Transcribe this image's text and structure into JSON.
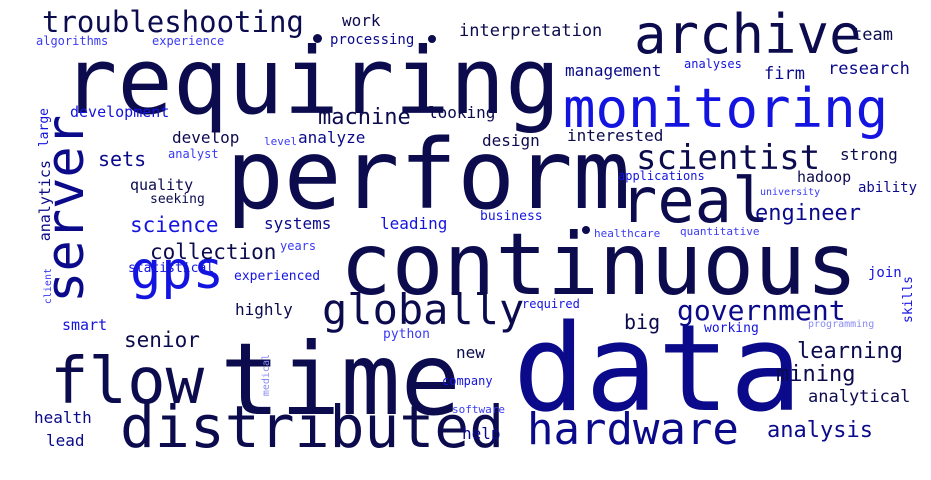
{
  "colors": {
    "background": "#ffffff",
    "navy_dark": "#0b0b4e",
    "navy": "#0a0a8a",
    "blue": "#1414e0",
    "blue_light": "#3a3af5",
    "blue_pale": "#8a8af5"
  },
  "words": [
    {
      "text": "requiring",
      "color": "#0b0b4e"
    },
    {
      "text": "perform",
      "color": "#0b0b4e"
    },
    {
      "text": "continuous",
      "color": "#0b0b4e"
    },
    {
      "text": "data",
      "color": "#0a0a8a"
    },
    {
      "text": "time",
      "color": "#0b0b4e"
    },
    {
      "text": "monitoring",
      "color": "#1414e0"
    },
    {
      "text": "archive",
      "color": "#0b0b4e"
    },
    {
      "text": "real",
      "color": "#0b0b4e"
    },
    {
      "text": "server",
      "color": "#0a0a8a"
    },
    {
      "text": "flow",
      "color": "#0b0b4e"
    },
    {
      "text": "distributed",
      "color": "#0b0b4e"
    },
    {
      "text": "hardware",
      "color": "#0a0a8a"
    },
    {
      "text": "gps",
      "color": "#1414e0"
    },
    {
      "text": "globally",
      "color": "#0b0b4e"
    },
    {
      "text": "troubleshooting",
      "color": "#0b0b4e"
    },
    {
      "text": "scientist",
      "color": "#0b0b4e"
    },
    {
      "text": "government",
      "color": "#0a0a8a"
    },
    {
      "text": "collection",
      "color": "#0b0b4e"
    },
    {
      "text": "science",
      "color": "#1414e0"
    },
    {
      "text": "engineer",
      "color": "#0a0a8a"
    },
    {
      "text": "machine",
      "color": "#0b0b4e"
    },
    {
      "text": "learning",
      "color": "#0b0b4e"
    },
    {
      "text": "mining",
      "color": "#0b0b4e"
    },
    {
      "text": "analysis",
      "color": "#0a0a8a"
    },
    {
      "text": "analytical",
      "color": "#0b0b4e"
    },
    {
      "text": "interpretation",
      "color": "#0b0b4e"
    },
    {
      "text": "management",
      "color": "#0a0a8a"
    },
    {
      "text": "research",
      "color": "#0a0a8a"
    },
    {
      "text": "firm",
      "color": "#0a0a8a"
    },
    {
      "text": "team",
      "color": "#0b0b4e"
    },
    {
      "text": "work",
      "color": "#0b0b4e"
    },
    {
      "text": "processing",
      "color": "#0a0a8a"
    },
    {
      "text": "algorithms",
      "color": "#3a3af5"
    },
    {
      "text": "experience",
      "color": "#3a3af5"
    },
    {
      "text": "development",
      "color": "#1414e0"
    },
    {
      "text": "looking",
      "color": "#0b0b4e"
    },
    {
      "text": "analyze",
      "color": "#0a0a8a"
    },
    {
      "text": "develop",
      "color": "#0b0b4e"
    },
    {
      "text": "design",
      "color": "#0b0b4e"
    },
    {
      "text": "interested",
      "color": "#0b0b4e"
    },
    {
      "text": "strong",
      "color": "#0b0b4e"
    },
    {
      "text": "hadoop",
      "color": "#0b0b4e"
    },
    {
      "text": "ability",
      "color": "#0a0a8a"
    },
    {
      "text": "sets",
      "color": "#0a0a8a"
    },
    {
      "text": "quality",
      "color": "#0b0b4e"
    },
    {
      "text": "seeking",
      "color": "#0b0b4e"
    },
    {
      "text": "systems",
      "color": "#0a0a8a"
    },
    {
      "text": "leading",
      "color": "#1414e0"
    },
    {
      "text": "business",
      "color": "#1414e0"
    },
    {
      "text": "analytics",
      "color": "#0a0a8a"
    },
    {
      "text": "large",
      "color": "#1414e0"
    },
    {
      "text": "analyst",
      "color": "#3a3af5"
    },
    {
      "text": "level",
      "color": "#3a3af5"
    },
    {
      "text": "applications",
      "color": "#1414e0"
    },
    {
      "text": "university",
      "color": "#3a3af5"
    },
    {
      "text": "healthcare",
      "color": "#3a3af5"
    },
    {
      "text": "quantitative",
      "color": "#3a3af5"
    },
    {
      "text": "analyses",
      "color": "#1414e0"
    },
    {
      "text": "years",
      "color": "#3a3af5"
    },
    {
      "text": "statistical",
      "color": "#1414e0"
    },
    {
      "text": "client",
      "color": "#3a3af5"
    },
    {
      "text": "experienced",
      "color": "#1414e0"
    },
    {
      "text": "join",
      "color": "#1414e0"
    },
    {
      "text": "skills",
      "color": "#1414e0"
    },
    {
      "text": "big",
      "color": "#0b0b4e"
    },
    {
      "text": "senior",
      "color": "#0b0b4e"
    },
    {
      "text": "highly",
      "color": "#0b0b4e"
    },
    {
      "text": "smart",
      "color": "#1414e0"
    },
    {
      "text": "required",
      "color": "#1414e0"
    },
    {
      "text": "python",
      "color": "#3a3af5"
    },
    {
      "text": "working",
      "color": "#1414e0"
    },
    {
      "text": "programming",
      "color": "#8a8af5"
    },
    {
      "text": "medical",
      "color": "#8a8af5"
    },
    {
      "text": "new",
      "color": "#0b0b4e"
    },
    {
      "text": "company",
      "color": "#1414e0"
    },
    {
      "text": "health",
      "color": "#0a0a8a"
    },
    {
      "text": "lead",
      "color": "#0a0a8a"
    },
    {
      "text": "software",
      "color": "#3a3af5"
    },
    {
      "text": "help",
      "color": "#0a0a8a"
    }
  ]
}
